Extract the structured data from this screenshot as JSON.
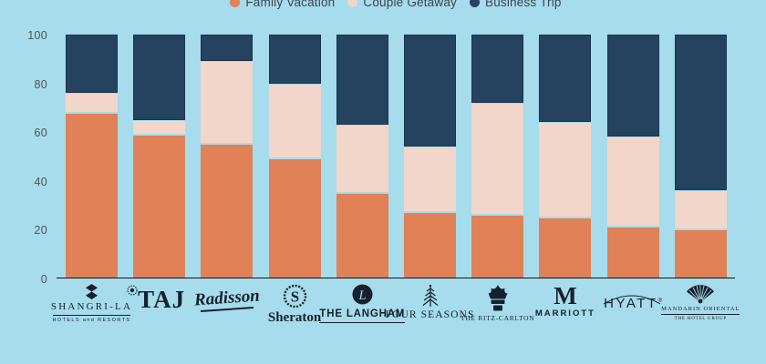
{
  "colors": {
    "background": "#A6DCEC",
    "family_vacation": "#E08157",
    "couple_getaway": "#F2D6CA",
    "business_trip": "#25425F",
    "axis_line": "#141414",
    "tick_text": "#4D535B",
    "legend_text": "#3C4350",
    "logo_ink": "#16202E"
  },
  "legend": {
    "items": [
      {
        "label": "Family Vacation",
        "color": "#E08157"
      },
      {
        "label": "Couple Getaway",
        "color": "#F2D6CA"
      },
      {
        "label": "Business Trip",
        "color": "#25425F"
      }
    ]
  },
  "chart_data": {
    "type": "bar",
    "stacked": true,
    "orientation": "vertical",
    "title": "",
    "xlabel": "",
    "ylabel": "",
    "ylim": [
      0,
      100
    ],
    "yticks": [
      0,
      20,
      40,
      60,
      80,
      100
    ],
    "grid": false,
    "legend_position": "top",
    "categories": [
      "Shangri-La",
      "Taj",
      "Radisson",
      "Sheraton",
      "The Langham",
      "Four Seasons",
      "The Ritz-Carlton",
      "Marriott",
      "Hyatt",
      "Mandarin Oriental"
    ],
    "series": [
      {
        "name": "Family Vacation",
        "color": "#E08157",
        "values": [
          68,
          59,
          55,
          49,
          35,
          27,
          26,
          25,
          21,
          20
        ]
      },
      {
        "name": "Couple Getaway",
        "color": "#F2D6CA",
        "values": [
          8,
          6,
          34,
          31,
          28,
          27,
          46,
          39,
          37,
          16
        ]
      },
      {
        "name": "Business Trip",
        "color": "#25425F",
        "values": [
          24,
          35,
          11,
          20,
          37,
          46,
          28,
          36,
          42,
          64
        ]
      }
    ]
  },
  "brands": [
    {
      "icon": "shangri-la-icon",
      "style": "shangrila",
      "line1": "SHANGRI-LA",
      "line2": "HOTELS and RESORTS"
    },
    {
      "icon": "taj-icon",
      "style": "taj",
      "line1": "TAJ",
      "line2": ""
    },
    {
      "icon": "",
      "style": "radisson",
      "line1": "Radisson",
      "line2": ""
    },
    {
      "icon": "sheraton-icon",
      "style": "sheraton",
      "line1": "Sheraton",
      "line2": ""
    },
    {
      "icon": "langham-icon",
      "style": "langham",
      "line1": "THE LANGHAM",
      "line2": ""
    },
    {
      "icon": "four-seasons-icon",
      "style": "fourseasons",
      "line1": "FOUR SEASONS",
      "line2": ""
    },
    {
      "icon": "ritz-carlton-icon",
      "style": "ritz",
      "line1": "THE RITZ-CARLTON",
      "line2": ""
    },
    {
      "icon": "marriott-icon",
      "style": "marriott",
      "line1": "MARRIOTT",
      "line2": ""
    },
    {
      "icon": "",
      "style": "hyatt",
      "line1": "HYATT",
      "line2": "®"
    },
    {
      "icon": "mandarin-icon",
      "style": "mandarin",
      "line1": "MANDARIN ORIENTAL",
      "line2": "THE HOTEL GROUP"
    }
  ]
}
